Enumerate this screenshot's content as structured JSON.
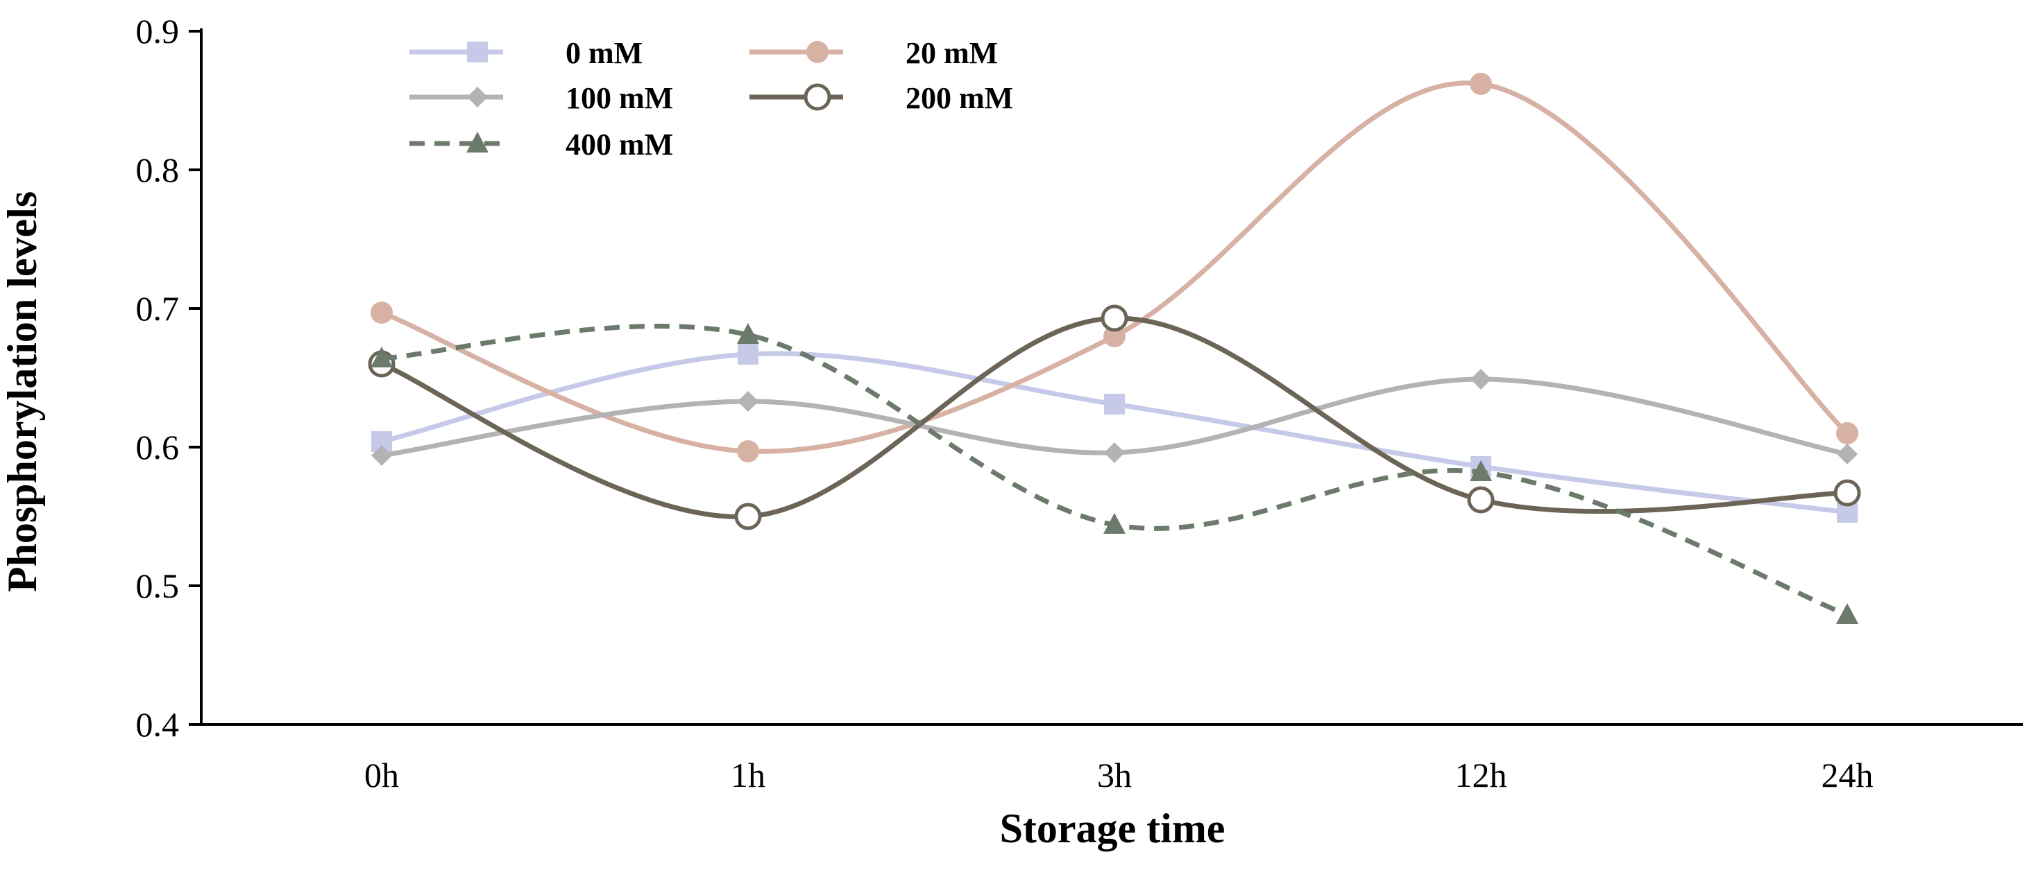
{
  "chart_data": {
    "type": "line",
    "title": "",
    "xlabel": "Storage time",
    "ylabel": "Phosphorylation levels",
    "categories": [
      "0h",
      "1h",
      "3h",
      "12h",
      "24h"
    ],
    "ylim": [
      0.4,
      0.9
    ],
    "yticks": [
      0.4,
      0.5,
      0.6,
      0.7,
      0.8,
      0.9
    ],
    "ytick_labels": [
      "0.4",
      "0.5",
      "0.6",
      "0.7",
      "0.8",
      "0.9"
    ],
    "grid": false,
    "smooth": true,
    "legend_position": "top-left",
    "series": [
      {
        "name": "0 mM",
        "values": [
          0.604,
          0.667,
          0.631,
          0.586,
          0.553
        ],
        "color": "#c7c9e8",
        "marker": "square",
        "dash": "solid"
      },
      {
        "name": "20 mM",
        "values": [
          0.697,
          0.597,
          0.68,
          0.862,
          0.61
        ],
        "color": "#d7b1a3",
        "marker": "circle",
        "dash": "solid"
      },
      {
        "name": "100 mM",
        "values": [
          0.594,
          0.633,
          0.596,
          0.649,
          0.595
        ],
        "color": "#b3b3b3",
        "marker": "diamond",
        "dash": "solid"
      },
      {
        "name": "200 mM",
        "values": [
          0.66,
          0.55,
          0.693,
          0.562,
          0.567
        ],
        "color": "#6b6457",
        "marker": "open-circle",
        "dash": "solid"
      },
      {
        "name": "400 mM",
        "values": [
          0.664,
          0.681,
          0.544,
          0.582,
          0.479
        ],
        "color": "#6b7a6b",
        "marker": "triangle",
        "dash": "dashed"
      }
    ]
  }
}
